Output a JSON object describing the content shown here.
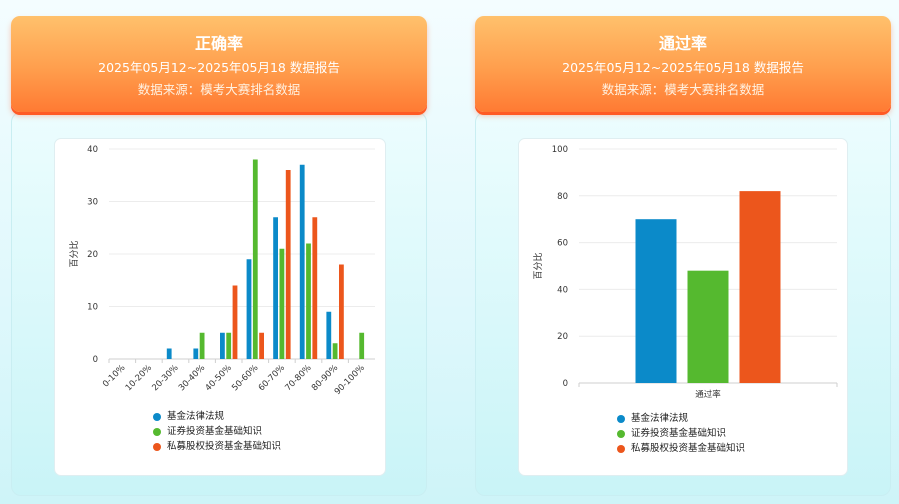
{
  "colors": {
    "blue": "#0b8ac9",
    "green": "#55b92f",
    "orange": "#ec561c"
  },
  "panels": [
    {
      "header": {
        "title": "正确率",
        "subtitle": "2025年05月12~2025年05月18 数据报告",
        "source": "数据来源：模考大赛排名数据"
      }
    },
    {
      "header": {
        "title": "通过率",
        "subtitle": "2025年05月12~2025年05月18 数据报告",
        "source": "数据来源：模考大赛排名数据"
      }
    }
  ],
  "chart_data": [
    {
      "type": "bar",
      "ylabel": "百分比",
      "ylim": [
        0,
        40
      ],
      "yticks": [
        0,
        10,
        20,
        30,
        40
      ],
      "categories": [
        "0-10%",
        "10-20%",
        "20-30%",
        "30-40%",
        "40-50%",
        "50-60%",
        "60-70%",
        "70-80%",
        "80-90%",
        "90-100%"
      ],
      "series": [
        {
          "name": "基金法律法规",
          "color": "#0b8ac9",
          "values": [
            0,
            0,
            2,
            2,
            5,
            19,
            27,
            37,
            9,
            0
          ]
        },
        {
          "name": "证券投资基金基础知识",
          "color": "#55b92f",
          "values": [
            0,
            0,
            0,
            5,
            5,
            38,
            21,
            22,
            3,
            5
          ]
        },
        {
          "name": "私募股权投资基金基础知识",
          "color": "#ec561c",
          "values": [
            0,
            0,
            0,
            0,
            14,
            5,
            36,
            27,
            18,
            0
          ]
        }
      ],
      "legend_position": "bottom",
      "grid": true
    },
    {
      "type": "bar",
      "ylabel": "百分比",
      "ylim": [
        0,
        100
      ],
      "yticks": [
        0,
        20,
        40,
        60,
        80,
        100
      ],
      "categories": [
        "通过率"
      ],
      "series": [
        {
          "name": "基金法律法规",
          "color": "#0b8ac9",
          "values": [
            70
          ]
        },
        {
          "name": "证券投资基金基础知识",
          "color": "#55b92f",
          "values": [
            48
          ]
        },
        {
          "name": "私募股权投资基金基础知识",
          "color": "#ec561c",
          "values": [
            82
          ]
        }
      ],
      "legend_position": "bottom",
      "grid": true
    }
  ]
}
